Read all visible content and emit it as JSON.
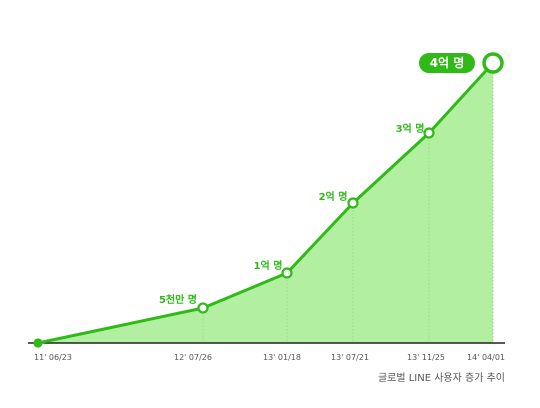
{
  "chart_data": {
    "type": "area",
    "x": [
      "11' 06/23",
      "12' 07/26",
      "13' 01/18",
      "13' 07/21",
      "13' 11/25",
      "14' 04/01"
    ],
    "tick_labels": [
      "11' 06/23",
      "12' 07/26",
      "13' 01/18",
      "13' 07/21",
      "13' 11/25",
      "14' 04/01"
    ],
    "values": [
      0,
      0.5,
      1,
      2,
      3,
      4
    ],
    "point_labels": [
      "",
      "5천만 명",
      "1억 명",
      "2억 명",
      "3억 명",
      "4억 명"
    ],
    "caption": "글로벌 LINE 사용자 증가 추이",
    "ylim": [
      0,
      4
    ],
    "grid": false,
    "colors": {
      "line": "#2fba18",
      "fill": "#b3efa1",
      "marker_fill": "#ffffff",
      "baseline": "#222222",
      "label_bg": "#2fba18",
      "dotted_guide": "#9fd98f"
    }
  }
}
